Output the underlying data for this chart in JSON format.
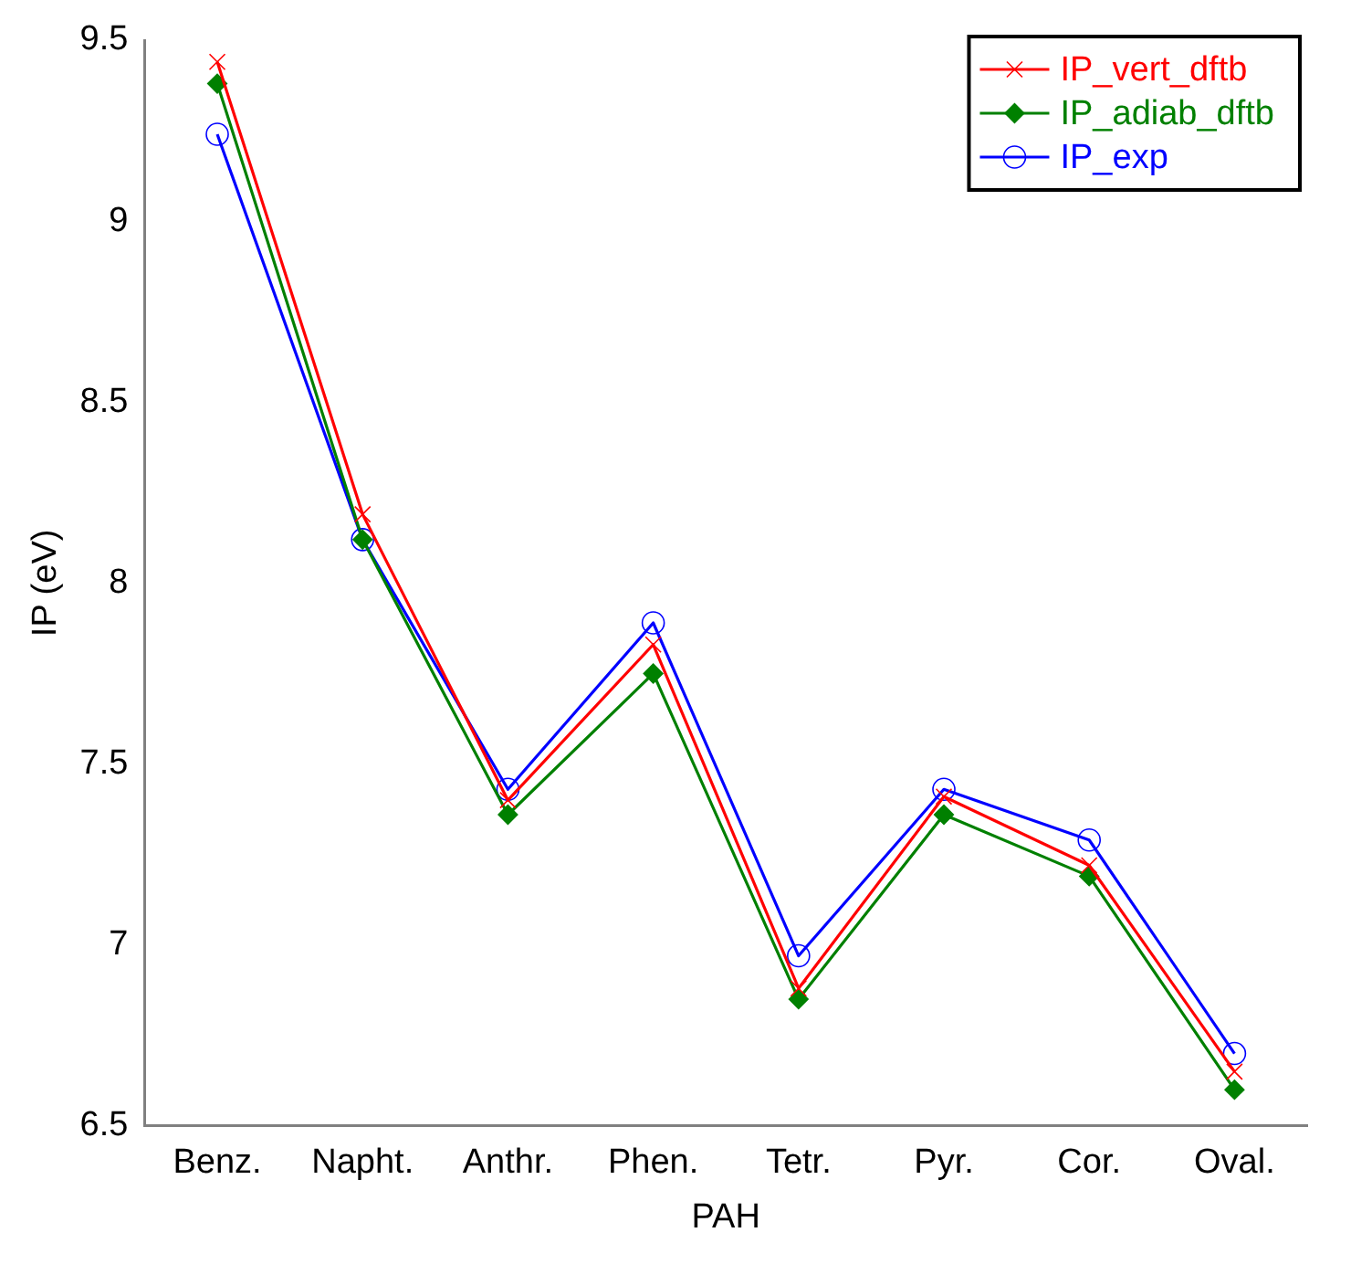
{
  "chart_data": {
    "type": "line",
    "xlabel": "PAH",
    "ylabel": "IP (eV)",
    "categories": [
      "Benz.",
      "Napht.",
      "Anthr.",
      "Phen.",
      "Tetr.",
      "Pyr.",
      "Cor.",
      "Oval."
    ],
    "ylim": [
      6.5,
      9.5
    ],
    "yticks": [
      6.5,
      7,
      7.5,
      8,
      8.5,
      9,
      9.5
    ],
    "grid": false,
    "legend": "top right",
    "line_style": "solid",
    "series": [
      {
        "name": "IP_vert_dftb",
        "color": "#ff0000",
        "marker": "cross",
        "values": [
          9.44,
          8.19,
          7.4,
          7.83,
          6.88,
          7.41,
          7.22,
          6.65
        ]
      },
      {
        "name": "IP_adiab_dftb",
        "color": "#008000",
        "marker": "diamond",
        "values": [
          9.38,
          8.12,
          7.36,
          7.75,
          6.85,
          7.36,
          7.19,
          6.6
        ]
      },
      {
        "name": "IP_exp",
        "color": "#0000ff",
        "marker": "circle",
        "values": [
          9.24,
          8.12,
          7.43,
          7.89,
          6.97,
          7.43,
          7.29,
          6.7
        ]
      }
    ]
  }
}
